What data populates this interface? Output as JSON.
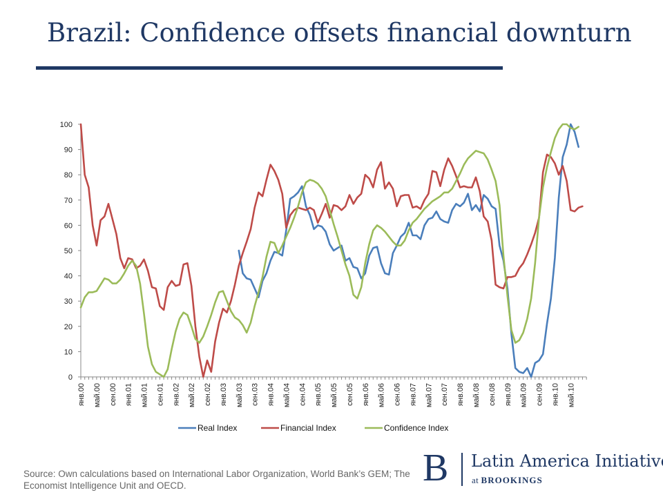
{
  "slide": {
    "title": "Brazil: Confidence offsets financial downturn",
    "source": "Source: Own calculations based on International Labor Organization, World Bank’s GEM; The Economist Intelligence Unit and OECD."
  },
  "logo": {
    "mark": "B",
    "name": "Latin America Initiative",
    "sub_prefix": "at ",
    "sub_org": "BROOKINGS"
  },
  "chart_data": {
    "type": "line",
    "title": "",
    "xlabel": "",
    "ylabel": "",
    "ylim": [
      0,
      100
    ],
    "yticks": [
      0,
      10,
      20,
      30,
      40,
      50,
      60,
      70,
      80,
      90,
      100
    ],
    "x_tick_labels": [
      "янв.00",
      "май.00",
      "сен.00",
      "янв.01",
      "май.01",
      "сен.01",
      "янв.02",
      "май.02",
      "сен.02",
      "янв.03",
      "май.03",
      "сен.03",
      "янв.04",
      "май.04",
      "сен.04",
      "янв.05",
      "май.05",
      "сен.05",
      "янв.06",
      "май.06",
      "сен.06",
      "янв.07",
      "май.07",
      "сен.07",
      "янв.08",
      "май.08",
      "сен.08",
      "янв.09",
      "май.09",
      "сен.09",
      "янв.10",
      "май.10"
    ],
    "start_month": "янв.00",
    "months_per_tick": 4,
    "legend_position": "bottom",
    "grid": false,
    "series": [
      {
        "name": "Real Index",
        "color": "#4a7ebb",
        "start": 40,
        "values": [
          50,
          41,
          39,
          38.5,
          35,
          31.5,
          38,
          41,
          46,
          49.5,
          49,
          48,
          58,
          70.5,
          71.5,
          73,
          75.5,
          67.5,
          64,
          58.5,
          60,
          59.5,
          57.5,
          52.5,
          50,
          51,
          52,
          46,
          47,
          43.5,
          43,
          39,
          41,
          48,
          51,
          51.5,
          45,
          41,
          40.5,
          49,
          52,
          55.5,
          57,
          61,
          56,
          56,
          54.5,
          60,
          62.5,
          63,
          65.5,
          62.5,
          61.5,
          61,
          66,
          68.5,
          67.5,
          69,
          72.5,
          66,
          68,
          65.5,
          72,
          70.5,
          67.5,
          66.5,
          52,
          46,
          35,
          17,
          3.5,
          2,
          1.5,
          3.5,
          0,
          5.5,
          6.5,
          9,
          21,
          31,
          47,
          71,
          87,
          92,
          100,
          97,
          91
        ]
      },
      {
        "name": "Financial Index",
        "color": "#be4b48",
        "start": 0,
        "values": [
          100,
          80,
          75,
          60,
          52,
          62,
          63.5,
          68.5,
          62.5,
          56.5,
          47,
          43,
          47,
          46.5,
          43,
          44,
          46.5,
          42,
          35.5,
          35,
          28,
          26.5,
          35.5,
          38,
          36,
          36.5,
          44.5,
          45,
          36,
          20,
          8,
          0,
          6.5,
          2,
          14,
          21.5,
          27,
          25.5,
          30,
          36.5,
          44,
          49,
          53.5,
          58.5,
          67,
          73,
          71.5,
          78,
          84,
          81.5,
          78,
          72.5,
          59,
          64,
          66,
          67,
          66.5,
          66,
          67,
          66,
          61,
          64.5,
          68.5,
          63,
          68,
          67.5,
          66,
          67.5,
          72,
          68.5,
          71,
          72.5,
          80,
          78.5,
          75,
          82,
          85,
          74.5,
          77,
          74.5,
          67.5,
          71.5,
          72,
          72,
          67,
          67.5,
          66.5,
          70,
          72.5,
          81.5,
          81,
          75.5,
          82,
          86.5,
          83.5,
          79.5,
          75,
          75.5,
          75,
          75,
          79,
          73.5,
          63.5,
          61.5,
          54,
          36.5,
          35.5,
          35,
          39.5,
          39.5,
          40,
          43,
          45,
          48.5,
          52.5,
          57,
          63,
          81,
          88,
          87,
          84.5,
          80,
          83.5,
          77.5,
          66,
          65.5,
          67,
          67.5
        ]
      },
      {
        "name": "Confidence Index",
        "color": "#9bbb59",
        "start": 0,
        "values": [
          27.5,
          31.5,
          33.5,
          33.5,
          34,
          36.5,
          39,
          38.5,
          37,
          37,
          38.5,
          41,
          44,
          46,
          44,
          37,
          25,
          12,
          5,
          2,
          1,
          0,
          3,
          11,
          18,
          23,
          25.5,
          24.5,
          20,
          15,
          13.5,
          16,
          20,
          24.5,
          29.5,
          33.5,
          34,
          30,
          26,
          23.5,
          22.5,
          20.5,
          17.5,
          21.5,
          28,
          33.5,
          39.5,
          47.5,
          53.5,
          53,
          49,
          52,
          55.5,
          59,
          63,
          67.5,
          73,
          77,
          78,
          77.5,
          76.5,
          74.5,
          71.5,
          66,
          60.5,
          55.5,
          50,
          44.5,
          40,
          32.5,
          31,
          35.5,
          45,
          52.5,
          58,
          60,
          59,
          57.5,
          55.5,
          53.5,
          52,
          52,
          54,
          58,
          61,
          62.5,
          64.5,
          66.5,
          68,
          69.5,
          70.5,
          71.5,
          73,
          73,
          74.5,
          77.5,
          80.5,
          84,
          86.5,
          88,
          89.5,
          89,
          88.5,
          86,
          82,
          77.5,
          68,
          48,
          32,
          18.5,
          13.5,
          14.5,
          17.5,
          23,
          31,
          45,
          63,
          75,
          83,
          89,
          94.5,
          98,
          100,
          100,
          98.5,
          98,
          99
        ]
      }
    ]
  }
}
